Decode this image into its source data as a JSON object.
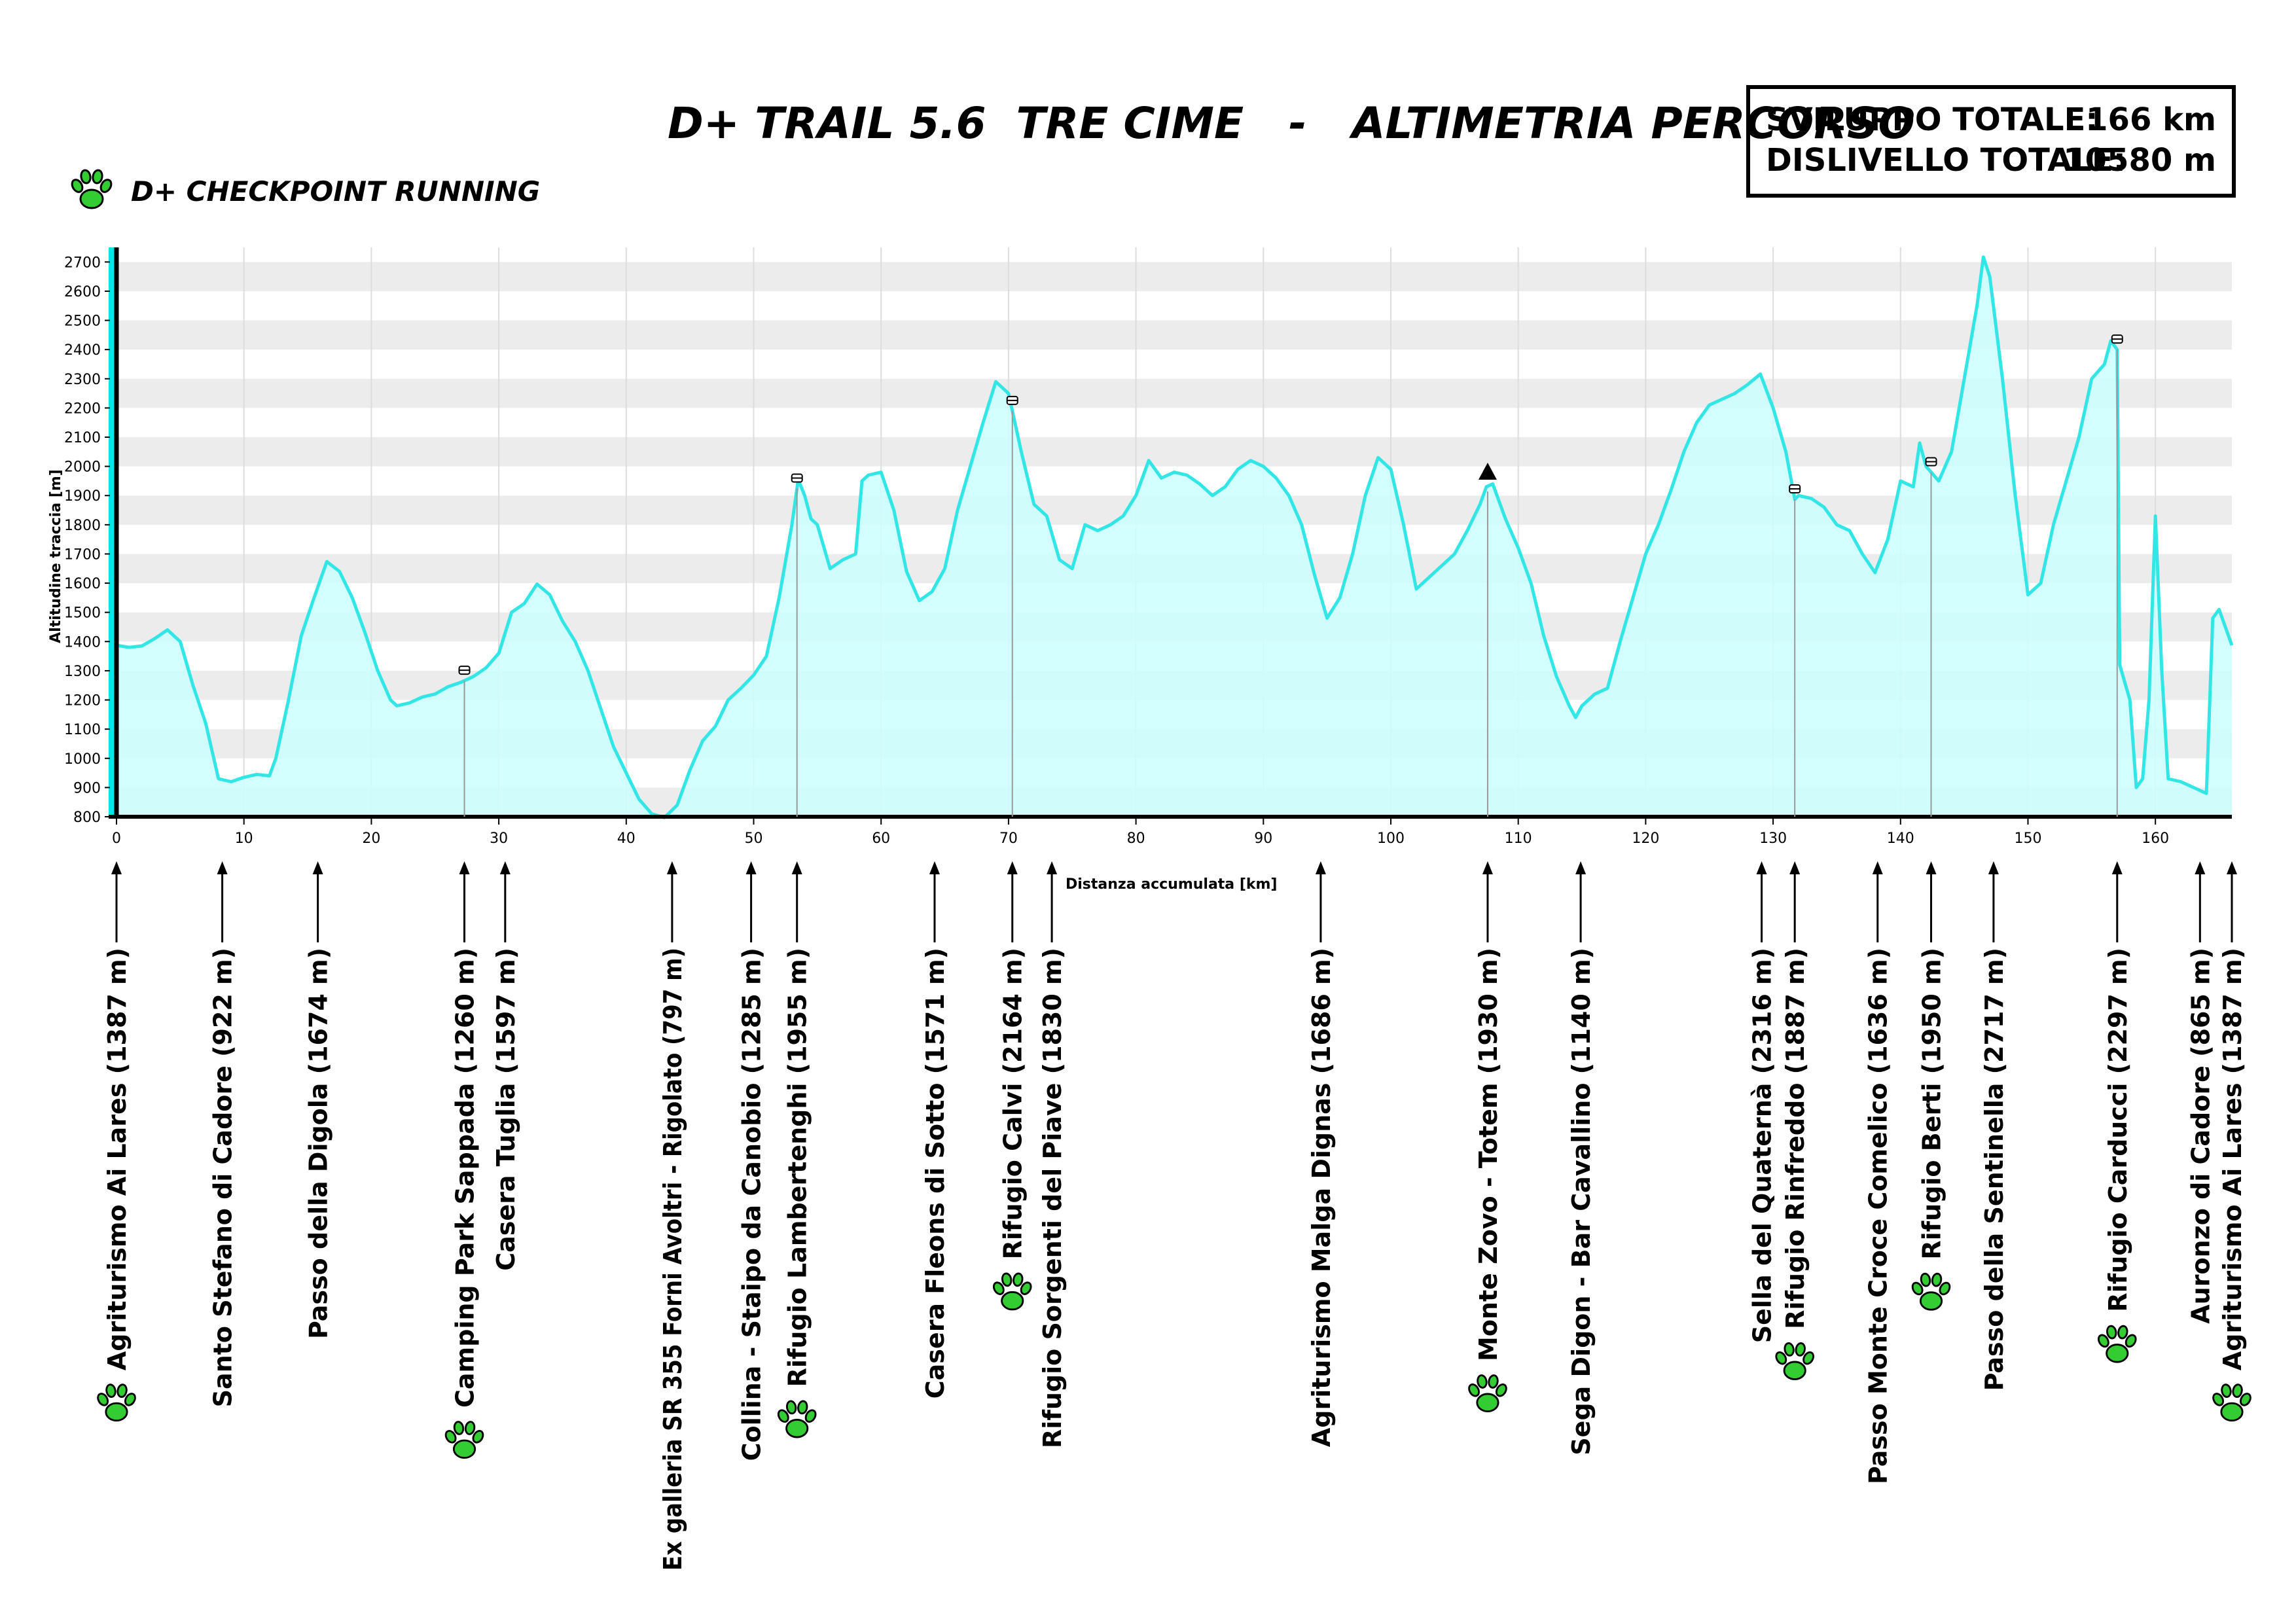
{
  "title": "D+ TRAIL 5.6  TRE CIME   -   ALTIMETRIA PERCORSO",
  "stats": {
    "dev_label": "SVILUPPO TOTALE:",
    "dev_value": "166 km",
    "elev_label": "DISLIVELLO TOTALE:",
    "elev_value": "10580 m"
  },
  "legend": {
    "label": "D+ CHECKPOINT RUNNING",
    "icon": "paw-print-icon",
    "color": "#33cc33"
  },
  "colors": {
    "line": "#33e6e6",
    "fill": "#ccffff",
    "checkpoint": "#33cc33"
  },
  "chart_data": {
    "type": "area",
    "title": "",
    "xlabel": "Distanza accumulata [km]",
    "ylabel": "Altitudine traccia [m]",
    "xlim": [
      0,
      166
    ],
    "ylim": [
      800,
      2750
    ],
    "grid": "banded",
    "x_ticks": [
      0,
      10,
      20,
      30,
      40,
      50,
      60,
      70,
      80,
      90,
      100,
      110,
      120,
      130,
      140,
      150,
      160
    ],
    "y_ticks": [
      800,
      900,
      1000,
      1100,
      1200,
      1300,
      1400,
      1500,
      1600,
      1700,
      1800,
      1900,
      2000,
      2100,
      2200,
      2300,
      2400,
      2500,
      2600,
      2700
    ],
    "profile": [
      [
        0,
        1387
      ],
      [
        1,
        1380
      ],
      [
        2,
        1385
      ],
      [
        3,
        1410
      ],
      [
        4,
        1440
      ],
      [
        5,
        1400
      ],
      [
        6,
        1250
      ],
      [
        7,
        1120
      ],
      [
        8,
        930
      ],
      [
        9,
        920
      ],
      [
        10,
        935
      ],
      [
        11,
        945
      ],
      [
        12,
        940
      ],
      [
        12.5,
        1000
      ],
      [
        13.5,
        1200
      ],
      [
        14.5,
        1420
      ],
      [
        15.5,
        1550
      ],
      [
        16.5,
        1674
      ],
      [
        17.5,
        1640
      ],
      [
        18.5,
        1550
      ],
      [
        19.5,
        1430
      ],
      [
        20.5,
        1300
      ],
      [
        21.5,
        1200
      ],
      [
        22,
        1180
      ],
      [
        23,
        1190
      ],
      [
        24,
        1210
      ],
      [
        25,
        1220
      ],
      [
        26,
        1245
      ],
      [
        27,
        1260
      ],
      [
        28,
        1280
      ],
      [
        29,
        1310
      ],
      [
        30,
        1360
      ],
      [
        31,
        1500
      ],
      [
        32,
        1530
      ],
      [
        33,
        1597
      ],
      [
        34,
        1560
      ],
      [
        35,
        1470
      ],
      [
        36,
        1400
      ],
      [
        37,
        1300
      ],
      [
        38,
        1170
      ],
      [
        39,
        1040
      ],
      [
        40,
        950
      ],
      [
        41,
        860
      ],
      [
        42,
        810
      ],
      [
        43,
        797
      ],
      [
        44,
        840
      ],
      [
        45,
        960
      ],
      [
        46,
        1060
      ],
      [
        47,
        1110
      ],
      [
        48,
        1200
      ],
      [
        49,
        1240
      ],
      [
        50,
        1285
      ],
      [
        51,
        1350
      ],
      [
        52,
        1550
      ],
      [
        53,
        1800
      ],
      [
        53.5,
        1955
      ],
      [
        54,
        1900
      ],
      [
        54.5,
        1820
      ],
      [
        55,
        1800
      ],
      [
        56,
        1650
      ],
      [
        57,
        1680
      ],
      [
        58,
        1700
      ],
      [
        58.5,
        1950
      ],
      [
        59,
        1970
      ],
      [
        60,
        1980
      ],
      [
        61,
        1850
      ],
      [
        62,
        1640
      ],
      [
        63,
        1540
      ],
      [
        64,
        1571
      ],
      [
        65,
        1650
      ],
      [
        66,
        1850
      ],
      [
        67,
        2000
      ],
      [
        68,
        2150
      ],
      [
        69,
        2290
      ],
      [
        70,
        2250
      ],
      [
        71,
        2050
      ],
      [
        72,
        1870
      ],
      [
        73,
        1830
      ],
      [
        74,
        1680
      ],
      [
        75,
        1650
      ],
      [
        76,
        1800
      ],
      [
        77,
        1780
      ],
      [
        78,
        1800
      ],
      [
        79,
        1830
      ],
      [
        80,
        1900
      ],
      [
        81,
        2020
      ],
      [
        82,
        1960
      ],
      [
        83,
        1980
      ],
      [
        84,
        1970
      ],
      [
        85,
        1940
      ],
      [
        86,
        1900
      ],
      [
        87,
        1930
      ],
      [
        88,
        1990
      ],
      [
        89,
        2020
      ],
      [
        90,
        2000
      ],
      [
        91,
        1960
      ],
      [
        92,
        1900
      ],
      [
        93,
        1800
      ],
      [
        94,
        1630
      ],
      [
        95,
        1480
      ],
      [
        96,
        1550
      ],
      [
        97,
        1700
      ],
      [
        98,
        1900
      ],
      [
        99,
        2030
      ],
      [
        100,
        1990
      ],
      [
        101,
        1800
      ],
      [
        102,
        1580
      ],
      [
        103,
        1620
      ],
      [
        104,
        1660
      ],
      [
        105,
        1700
      ],
      [
        106,
        1780
      ],
      [
        107,
        1870
      ],
      [
        107.5,
        1930
      ],
      [
        108,
        1940
      ],
      [
        109,
        1820
      ],
      [
        110,
        1720
      ],
      [
        111,
        1600
      ],
      [
        112,
        1420
      ],
      [
        113,
        1280
      ],
      [
        114,
        1180
      ],
      [
        114.5,
        1140
      ],
      [
        115,
        1180
      ],
      [
        116,
        1220
      ],
      [
        117,
        1240
      ],
      [
        118,
        1400
      ],
      [
        119,
        1550
      ],
      [
        120,
        1700
      ],
      [
        121,
        1800
      ],
      [
        122,
        1920
      ],
      [
        123,
        2050
      ],
      [
        124,
        2150
      ],
      [
        125,
        2210
      ],
      [
        126,
        2230
      ],
      [
        127,
        2250
      ],
      [
        128,
        2280
      ],
      [
        129,
        2316
      ],
      [
        130,
        2200
      ],
      [
        131,
        2050
      ],
      [
        131.7,
        1887
      ],
      [
        132,
        1900
      ],
      [
        133,
        1890
      ],
      [
        134,
        1860
      ],
      [
        135,
        1800
      ],
      [
        136,
        1780
      ],
      [
        137,
        1700
      ],
      [
        138,
        1636
      ],
      [
        139,
        1750
      ],
      [
        140,
        1950
      ],
      [
        141,
        1930
      ],
      [
        141.5,
        2080
      ],
      [
        142,
        2000
      ],
      [
        143,
        1950
      ],
      [
        144,
        2050
      ],
      [
        145,
        2300
      ],
      [
        146,
        2550
      ],
      [
        146.5,
        2717
      ],
      [
        147,
        2650
      ],
      [
        148,
        2300
      ],
      [
        149,
        1900
      ],
      [
        150,
        1560
      ],
      [
        151,
        1600
      ],
      [
        152,
        1800
      ],
      [
        153,
        1950
      ],
      [
        154,
        2100
      ],
      [
        155,
        2300
      ],
      [
        156,
        2350
      ],
      [
        156.5,
        2430
      ],
      [
        157,
        2400
      ],
      [
        157.2,
        1320
      ],
      [
        158,
        1200
      ],
      [
        158.5,
        900
      ],
      [
        159,
        930
      ],
      [
        159.5,
        1200
      ],
      [
        160,
        1830
      ],
      [
        160.5,
        1300
      ],
      [
        161,
        930
      ],
      [
        162,
        920
      ],
      [
        163,
        900
      ],
      [
        164,
        880
      ],
      [
        164.5,
        1480
      ],
      [
        165,
        1510
      ],
      [
        166,
        1387
      ]
    ]
  },
  "waypoints": [
    {
      "km": 0,
      "label": "Agriturismo Ai Lares  (1387 m)",
      "checkpoint": true
    },
    {
      "km": 8.3,
      "label": "Santo Stefano di Cadore  (922 m)",
      "checkpoint": false
    },
    {
      "km": 15.8,
      "label": "Passo della Digola  (1674 m)",
      "checkpoint": false
    },
    {
      "km": 27.3,
      "label": "Camping Park Sappada  (1260 m)",
      "checkpoint": true,
      "hut": true
    },
    {
      "km": 30.5,
      "label": "Casera Tuglia  (1597 m)",
      "checkpoint": false
    },
    {
      "km": 43.6,
      "label": "Ex galleria SR 355 Forni Avoltri - Rigolato  (797 m)",
      "checkpoint": false
    },
    {
      "km": 49.8,
      "label": "Collina - Staipo da Canobio  (1285 m)",
      "checkpoint": false
    },
    {
      "km": 53.4,
      "label": "Rifugio Lambertenghi  (1955 m)",
      "checkpoint": true,
      "hut": true
    },
    {
      "km": 64.2,
      "label": "Casera Fleons di Sotto  (1571 m)",
      "checkpoint": false
    },
    {
      "km": 70.3,
      "label": "Rifugio Calvi  (2164 m)",
      "checkpoint": true,
      "hut": true
    },
    {
      "km": 73.4,
      "label": "Rifugio Sorgenti del Piave  (1830 m)",
      "checkpoint": false
    },
    {
      "km": 94.5,
      "label": "Agriturismo Malga Dignas  (1686 m)",
      "checkpoint": false
    },
    {
      "km": 107.6,
      "label": "Monte Zovo - Totem  (1930 m)",
      "checkpoint": true,
      "summit": true
    },
    {
      "km": 114.9,
      "label": "Sega Digon - Bar Cavallino  (1140 m)",
      "checkpoint": false
    },
    {
      "km": 129.1,
      "label": "Sella del Quaternà  (2316 m)",
      "checkpoint": false
    },
    {
      "km": 131.7,
      "label": "Rifugio Rinfreddo  (1887 m)",
      "checkpoint": true,
      "hut": true
    },
    {
      "km": 138.2,
      "label": "Passo Monte Croce Comelico  (1636 m)",
      "checkpoint": false
    },
    {
      "km": 142.4,
      "label": "Rifugio Berti  (1950 m)",
      "checkpoint": true,
      "hut": true
    },
    {
      "km": 147.3,
      "label": "Passo della Sentinella  (2717 m)",
      "checkpoint": false
    },
    {
      "km": 157.0,
      "label": "Rifugio Carducci  (2297 m)",
      "checkpoint": true,
      "hut": true
    },
    {
      "km": 163.5,
      "label": "Auronzo di Cadore  (865 m)",
      "checkpoint": false
    },
    {
      "km": 166,
      "label": "Agriturismo Ai Lares  (1387 m)",
      "checkpoint": true
    }
  ]
}
